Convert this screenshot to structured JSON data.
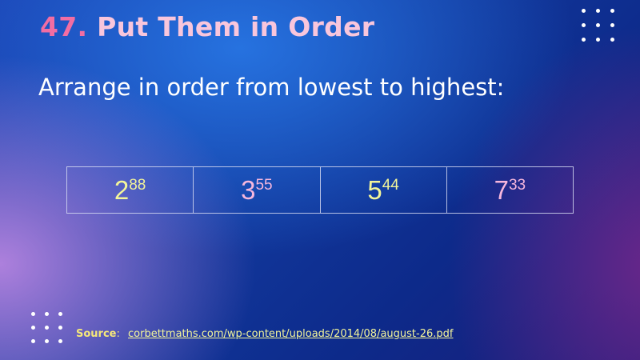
{
  "slide": {
    "number": "47.",
    "title": "Put Them in Order",
    "instruction": "Arrange in order from lowest to highest:"
  },
  "powers": [
    {
      "base": "2",
      "exponent": "88",
      "color": "#f3f59a"
    },
    {
      "base": "3",
      "exponent": "55",
      "color": "#f6b7dd"
    },
    {
      "base": "5",
      "exponent": "44",
      "color": "#f3f59a"
    },
    {
      "base": "7",
      "exponent": "33",
      "color": "#f6b7dd"
    }
  ],
  "source": {
    "label": "Source",
    "colon": ":",
    "link": "corbettmaths.com/wp-content/uploads/2014/08/august-26.pdf"
  },
  "colors": {
    "title_number": "#f26da3",
    "title_text": "#f9c6dc",
    "background": "#123a9f"
  }
}
